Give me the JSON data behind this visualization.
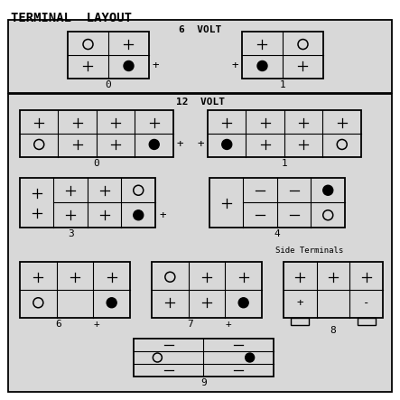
{
  "title": "TERMINAL  LAYOUT",
  "bg_outer": "#d8d8d8",
  "bg_inner": "#e0e0e0",
  "section_6v": "6  VOLT",
  "section_12v": "12  VOLT",
  "side_terminals": "Side Terminals"
}
